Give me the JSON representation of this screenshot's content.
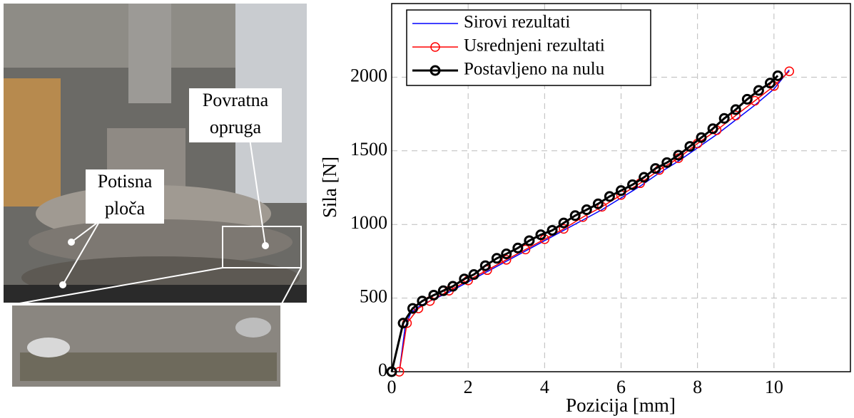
{
  "photo": {
    "labels": [
      [
        "Povratna",
        "opruga"
      ],
      [
        "Potisna",
        "ploča"
      ]
    ]
  },
  "chart_data": {
    "type": "line",
    "xlabel": "Pozicija [mm]",
    "ylabel": "Sila [N]",
    "xlim": [
      0,
      12
    ],
    "ylim": [
      0,
      2500
    ],
    "xticks": [
      0,
      2,
      4,
      6,
      8,
      10
    ],
    "yticks": [
      0,
      500,
      1000,
      1500,
      2000
    ],
    "grid": true,
    "legend": "upper left",
    "series": [
      {
        "name": "Sirovi rezultati",
        "color": "#0000ff",
        "linewidth": 1.5,
        "x": [
          0.2,
          0.35,
          0.5,
          0.7,
          1,
          1.5,
          2,
          2.5,
          3,
          3.5,
          4,
          4.5,
          5,
          5.5,
          6,
          6.5,
          7,
          7.5,
          8,
          8.5,
          9,
          9.5,
          10,
          10.4
        ],
        "values": [
          0,
          300,
          400,
          440,
          480,
          540,
          610,
          680,
          750,
          820,
          890,
          960,
          1030,
          1100,
          1180,
          1260,
          1350,
          1430,
          1520,
          1610,
          1710,
          1810,
          1920,
          2050
        ]
      },
      {
        "name": "Usrednjeni rezultati",
        "color": "#ff0000",
        "linewidth": 1.5,
        "marker": "circle",
        "x": [
          0.2,
          0.4,
          0.7,
          1,
          1.5,
          2,
          2.5,
          3,
          3.5,
          4,
          4.5,
          5,
          5.5,
          6,
          6.5,
          7,
          7.5,
          8,
          8.5,
          9,
          9.5,
          10,
          10.4
        ],
        "values": [
          0,
          330,
          430,
          480,
          550,
          620,
          690,
          760,
          830,
          900,
          970,
          1050,
          1120,
          1200,
          1280,
          1370,
          1450,
          1550,
          1640,
          1740,
          1840,
          1940,
          2040
        ]
      },
      {
        "name": "Postavljeno na nulu",
        "color": "#000000",
        "linewidth": 3,
        "marker": "circle",
        "x": [
          0,
          0.3,
          0.55,
          0.8,
          1.1,
          1.35,
          1.6,
          1.9,
          2.15,
          2.45,
          2.75,
          3,
          3.3,
          3.6,
          3.9,
          4.2,
          4.5,
          4.8,
          5.1,
          5.4,
          5.7,
          6,
          6.3,
          6.6,
          6.9,
          7.2,
          7.5,
          7.8,
          8.1,
          8.4,
          8.7,
          9,
          9.3,
          9.6,
          9.9,
          10.1
        ],
        "values": [
          0,
          330,
          430,
          480,
          520,
          550,
          580,
          630,
          660,
          720,
          770,
          800,
          840,
          890,
          930,
          960,
          1010,
          1060,
          1100,
          1140,
          1190,
          1230,
          1270,
          1320,
          1380,
          1420,
          1470,
          1530,
          1590,
          1650,
          1720,
          1780,
          1850,
          1910,
          1960,
          2010
        ]
      }
    ]
  }
}
